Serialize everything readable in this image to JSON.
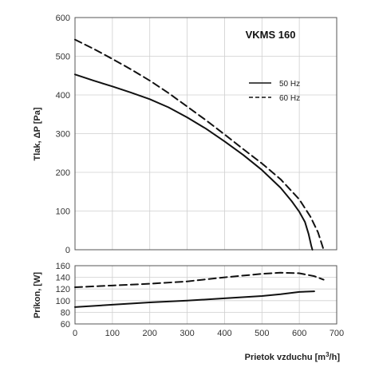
{
  "chart_data": [
    {
      "type": "line",
      "title": "VKMS 160",
      "xlabel": "Prietok vzduchu",
      "xlabel_unit_prefix": "[m",
      "xlabel_unit_sup": "3",
      "xlabel_unit_suffix": "/h]",
      "ylabel": "Tlak, ΔP [Pa]",
      "xlim": [
        0,
        700
      ],
      "ylim": [
        0,
        600
      ],
      "xticks": [
        0,
        100,
        200,
        300,
        400,
        500,
        600,
        700
      ],
      "yticks": [
        0,
        100,
        200,
        300,
        400,
        500,
        600
      ],
      "grid": true,
      "legend_position": "right",
      "series": [
        {
          "name": "50 Hz",
          "style": "solid",
          "points": [
            [
              0,
              453
            ],
            [
              50,
              437
            ],
            [
              100,
              422
            ],
            [
              150,
              406
            ],
            [
              200,
              389
            ],
            [
              250,
              368
            ],
            [
              300,
              342
            ],
            [
              350,
              313
            ],
            [
              400,
              280
            ],
            [
              450,
              245
            ],
            [
              500,
              206
            ],
            [
              550,
              160
            ],
            [
              580,
              125
            ],
            [
              600,
              98
            ],
            [
              615,
              72
            ],
            [
              625,
              40
            ],
            [
              632,
              10
            ],
            [
              635,
              0
            ]
          ]
        },
        {
          "name": "60 Hz",
          "style": "dashed",
          "points": [
            [
              0,
              543
            ],
            [
              50,
              519
            ],
            [
              100,
              493
            ],
            [
              150,
              466
            ],
            [
              200,
              437
            ],
            [
              250,
              405
            ],
            [
              300,
              370
            ],
            [
              350,
              335
            ],
            [
              400,
              298
            ],
            [
              450,
              260
            ],
            [
              500,
              223
            ],
            [
              550,
              182
            ],
            [
              600,
              130
            ],
            [
              630,
              85
            ],
            [
              650,
              45
            ],
            [
              665,
              0
            ]
          ]
        }
      ]
    },
    {
      "type": "line",
      "title": "",
      "xlabel": "Prietok vzduchu",
      "ylabel": "Príkon, [W]",
      "xlim": [
        0,
        700
      ],
      "ylim": [
        60,
        160
      ],
      "xticks": [
        0,
        100,
        200,
        300,
        400,
        500,
        600,
        700
      ],
      "yticks": [
        60,
        80,
        100,
        120,
        140,
        160
      ],
      "grid": true,
      "series": [
        {
          "name": "50 Hz",
          "style": "solid",
          "points": [
            [
              0,
              89
            ],
            [
              100,
              93
            ],
            [
              200,
              97
            ],
            [
              300,
              100
            ],
            [
              400,
              104
            ],
            [
              500,
              108
            ],
            [
              550,
              111
            ],
            [
              600,
              115
            ],
            [
              640,
              116
            ]
          ]
        },
        {
          "name": "60 Hz",
          "style": "dashed",
          "points": [
            [
              0,
              123
            ],
            [
              100,
              126
            ],
            [
              200,
              129
            ],
            [
              300,
              133
            ],
            [
              400,
              140
            ],
            [
              500,
              146
            ],
            [
              550,
              148
            ],
            [
              600,
              147
            ],
            [
              640,
              142
            ],
            [
              665,
              136
            ]
          ]
        }
      ]
    }
  ],
  "colors": {
    "line": "#111111",
    "grid": "#cfcfcf",
    "frame": "#555555"
  }
}
